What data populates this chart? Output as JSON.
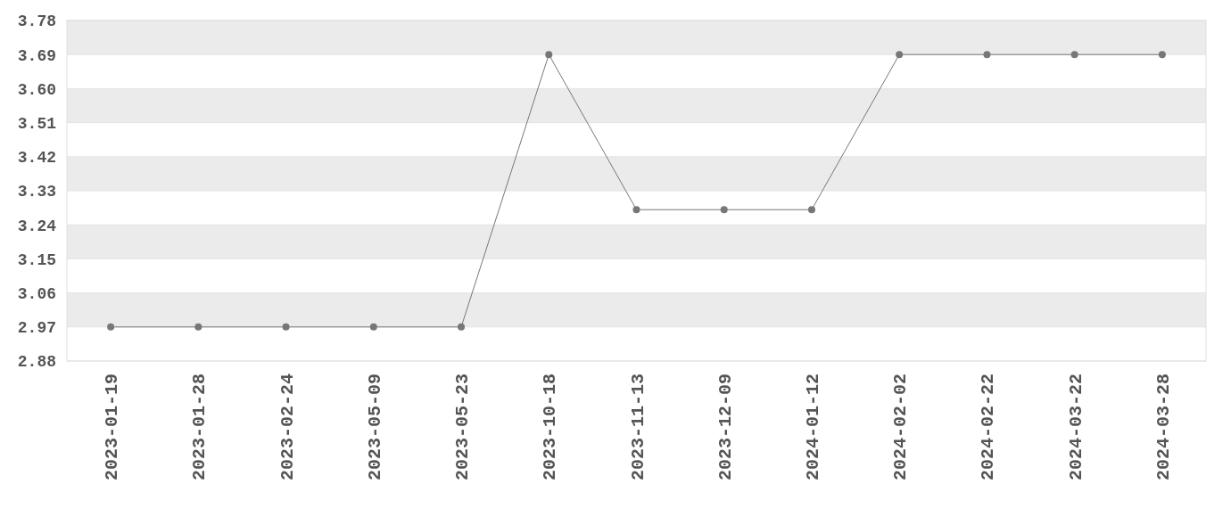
{
  "chart_data": {
    "type": "line",
    "categories": [
      "2023-01-19",
      "2023-01-28",
      "2023-02-24",
      "2023-05-09",
      "2023-05-23",
      "2023-10-18",
      "2023-11-13",
      "2023-12-09",
      "2024-01-12",
      "2024-02-02",
      "2024-02-22",
      "2024-03-22",
      "2024-03-28"
    ],
    "series": [
      {
        "color": "#777777",
        "values": [
          2.97,
          2.97,
          2.97,
          2.97,
          2.97,
          3.69,
          3.28,
          3.28,
          3.28,
          3.69,
          3.69,
          3.69,
          3.69
        ]
      }
    ],
    "ylim": [
      2.88,
      3.78
    ],
    "yticks": [
      2.88,
      2.97,
      3.06,
      3.15,
      3.24,
      3.33,
      3.42,
      3.51,
      {
        "value": 3.6,
        "label": "3.60"
      },
      3.69,
      3.78
    ],
    "grid": "y",
    "marker": "circle",
    "line_style": "solid"
  }
}
